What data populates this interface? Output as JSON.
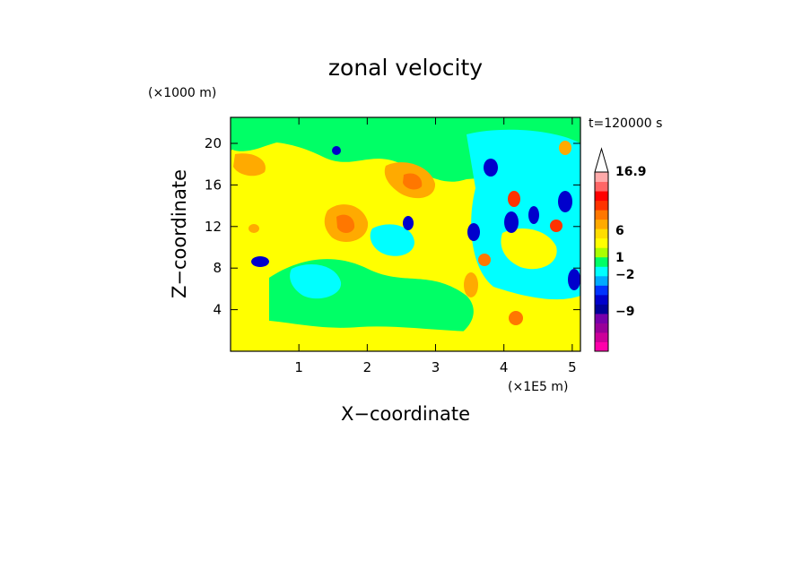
{
  "chart_data": {
    "type": "heatmap",
    "title": "zonal velocity",
    "xlabel": "X−coordinate",
    "ylabel": "Z−coordinate",
    "x_unit": "(×1E5 m)",
    "y_unit": "(×1000 m)",
    "time_label": "t=120000 s",
    "xlim": [
      0,
      5.12
    ],
    "ylim": [
      0,
      22.5
    ],
    "x_ticks": [
      "1",
      "2",
      "3",
      "4",
      "5"
    ],
    "y_ticks": [
      "4",
      "8",
      "12",
      "16",
      "20"
    ],
    "x_tick_values": [
      1,
      2,
      3,
      4,
      5
    ],
    "y_tick_values": [
      4,
      8,
      12,
      16,
      20
    ],
    "colorbar": {
      "levels": [
        "16.9",
        "6",
        "1",
        "−2",
        "−9"
      ],
      "colors": [
        "#ff00aa",
        "#cc0099",
        "#990099",
        "#7700aa",
        "#000099",
        "#0000cc",
        "#0033ff",
        "#00aaff",
        "#00ffff",
        "#00ff66",
        "#aaff00",
        "#ffff00",
        "#ffdd00",
        "#ffaa00",
        "#ff7700",
        "#ff3300",
        "#ff0000",
        "#ff6666",
        "#ffaaaa"
      ]
    }
  }
}
